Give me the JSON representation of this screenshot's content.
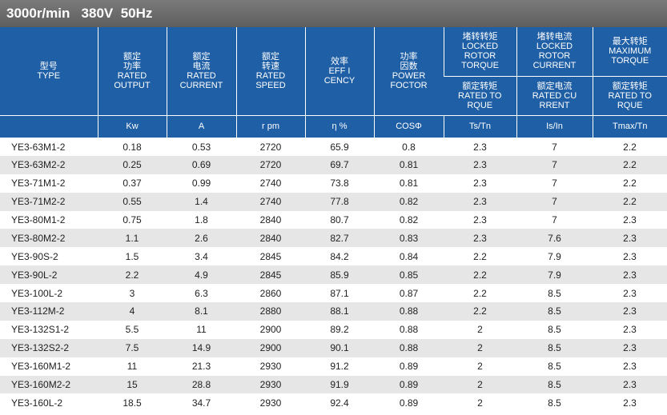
{
  "title": "3000r/min   380V  50Hz",
  "headers": {
    "type": {
      "cn": "型号",
      "en": "TYPE"
    },
    "output": {
      "cn": [
        "额定",
        "功率"
      ],
      "en": [
        "RATED",
        "OUTPUT"
      ],
      "unit": "Kw"
    },
    "current": {
      "cn": [
        "额定",
        "电流"
      ],
      "en": [
        "RATED",
        "CURRENT"
      ],
      "unit": "A"
    },
    "speed": {
      "cn": [
        "额定",
        "转速"
      ],
      "en": [
        "RATED",
        "SPEED"
      ],
      "unit": "r pm"
    },
    "efficiency": {
      "cn": [
        "效率"
      ],
      "en": [
        "EFF I",
        "CENCY"
      ],
      "unit": "η %"
    },
    "power_factor": {
      "cn": [
        "功率",
        "因数"
      ],
      "en": [
        "POWER",
        "FOCTOR"
      ],
      "unit": "COSΦ"
    },
    "locked_torque": {
      "top_cn": "堵转转矩",
      "top_en": [
        "LOCKED",
        "ROTOR",
        "TORQUE"
      ],
      "mid_cn": "额定转矩",
      "mid_en": [
        "RATED TO",
        "RQUE"
      ],
      "unit": "Ts/Tn"
    },
    "locked_current": {
      "top_cn": "堵转电流",
      "top_en": [
        "LOCKED",
        "ROTOR",
        "CURRENT"
      ],
      "mid_cn": "额定电流",
      "mid_en": [
        "RATED CU",
        "RRENT"
      ],
      "unit": "Is/In"
    },
    "max_torque": {
      "top_cn": "最大转矩",
      "top_en": [
        "MAXIMUM",
        "TORQUE"
      ],
      "mid_cn": "额定转矩",
      "mid_en": [
        "RATED TO",
        "RQUE"
      ],
      "unit": "Tmax/Tn"
    }
  },
  "rows": [
    [
      "YE3-63M1-2",
      "0.18",
      "0.53",
      "2720",
      "65.9",
      "0.8",
      "2.3",
      "7",
      "2.2"
    ],
    [
      "YE3-63M2-2",
      "0.25",
      "0.69",
      "2720",
      "69.7",
      "0.81",
      "2.3",
      "7",
      "2.2"
    ],
    [
      "YE3-71M1-2",
      "0.37",
      "0.99",
      "2740",
      "73.8",
      "0.81",
      "2.3",
      "7",
      "2.2"
    ],
    [
      "YE3-71M2-2",
      "0.55",
      "1.4",
      "2740",
      "77.8",
      "0.82",
      "2.3",
      "7",
      "2.2"
    ],
    [
      "YE3-80M1-2",
      "0.75",
      "1.8",
      "2840",
      "80.7",
      "0.82",
      "2.3",
      "7",
      "2.3"
    ],
    [
      "YE3-80M2-2",
      "1.1",
      "2.6",
      "2840",
      "82.7",
      "0.83",
      "2.3",
      "7.6",
      "2.3"
    ],
    [
      "YE3-90S-2",
      "1.5",
      "3.4",
      "2845",
      "84.2",
      "0.84",
      "2.2",
      "7.9",
      "2.3"
    ],
    [
      "YE3-90L-2",
      "2.2",
      "4.9",
      "2845",
      "85.9",
      "0.85",
      "2.2",
      "7.9",
      "2.3"
    ],
    [
      "YE3-100L-2",
      "3",
      "6.3",
      "2860",
      "87.1",
      "0.87",
      "2.2",
      "8.5",
      "2.3"
    ],
    [
      "YE3-112M-2",
      "4",
      "8.1",
      "2880",
      "88.1",
      "0.88",
      "2.2",
      "8.5",
      "2.3"
    ],
    [
      "YE3-132S1-2",
      "5.5",
      "11",
      "2900",
      "89.2",
      "0.88",
      "2",
      "8.5",
      "2.3"
    ],
    [
      "YE3-132S2-2",
      "7.5",
      "14.9",
      "2900",
      "90.1",
      "0.88",
      "2",
      "8.5",
      "2.3"
    ],
    [
      "YE3-160M1-2",
      "11",
      "21.3",
      "2930",
      "91.2",
      "0.89",
      "2",
      "8.5",
      "2.3"
    ],
    [
      "YE3-160M2-2",
      "15",
      "28.8",
      "2930",
      "91.9",
      "0.89",
      "2",
      "8.5",
      "2.3"
    ],
    [
      "YE3-160L-2",
      "18.5",
      "34.7",
      "2930",
      "92.4",
      "0.89",
      "2",
      "8.5",
      "2.3"
    ]
  ]
}
